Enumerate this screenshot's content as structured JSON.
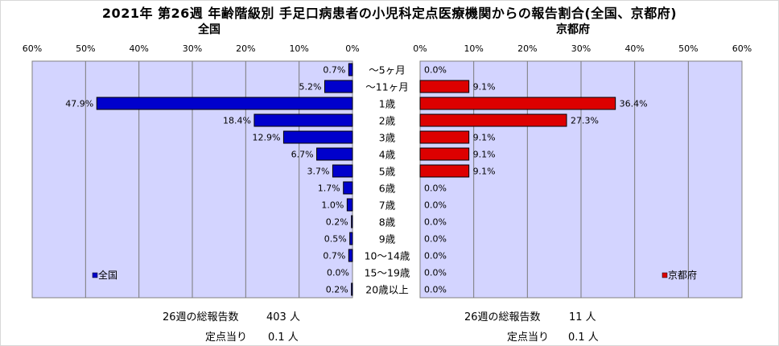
{
  "title": "2021年 第26週 年齢階級別 手足口病患者の小児科定点医療機関からの報告割合(全国、京都府)",
  "chart_data": [
    {
      "type": "bar",
      "panel_title": "全国",
      "legend": "全国",
      "legend_position": "bottom-left",
      "color": "#0000CC",
      "xlim": [
        0,
        60
      ],
      "x_ticks": [
        "0%",
        "10%",
        "20%",
        "30%",
        "40%",
        "50%",
        "60%"
      ],
      "categories": [
        "～5ヶ月",
        "～11ヶ月",
        "1歳",
        "2歳",
        "3歳",
        "4歳",
        "5歳",
        "6歳",
        "7歳",
        "8歳",
        "9歳",
        "10～14歳",
        "15～19歳",
        "20歳以上"
      ],
      "values": [
        0.7,
        5.2,
        47.9,
        18.4,
        12.9,
        6.7,
        3.7,
        1.7,
        1.0,
        0.2,
        0.5,
        0.7,
        0.0,
        0.2
      ],
      "value_labels": [
        "0.7%",
        "5.2%",
        "47.9%",
        "18.4%",
        "12.9%",
        "6.7%",
        "3.7%",
        "1.7%",
        "1.0%",
        "0.2%",
        "0.5%",
        "0.7%",
        "0.0%",
        "0.2%"
      ],
      "grid": true
    },
    {
      "type": "bar",
      "panel_title": "京都府",
      "legend": "京都府",
      "legend_position": "bottom-right",
      "color": "#DD0000",
      "xlim": [
        0,
        60
      ],
      "x_ticks": [
        "0%",
        "10%",
        "20%",
        "30%",
        "40%",
        "50%",
        "60%"
      ],
      "categories": [
        "～5ヶ月",
        "～11ヶ月",
        "1歳",
        "2歳",
        "3歳",
        "4歳",
        "5歳",
        "6歳",
        "7歳",
        "8歳",
        "9歳",
        "10～14歳",
        "15～19歳",
        "20歳以上"
      ],
      "values": [
        0.0,
        9.1,
        36.4,
        27.3,
        9.1,
        9.1,
        9.1,
        0.0,
        0.0,
        0.0,
        0.0,
        0.0,
        0.0,
        0.0
      ],
      "value_labels": [
        "0.0%",
        "9.1%",
        "36.4%",
        "27.3%",
        "9.1%",
        "9.1%",
        "9.1%",
        "0.0%",
        "0.0%",
        "0.0%",
        "0.0%",
        "0.0%",
        "0.0%",
        "0.0%"
      ],
      "grid": true
    }
  ],
  "footer": {
    "national": {
      "total_label": "26週の総報告数",
      "total_value": "403 人",
      "per_label": "定点当り",
      "per_value": "0.1 人"
    },
    "kyoto": {
      "total_label": "26週の総報告数",
      "total_value": "11 人",
      "per_label": "定点当り",
      "per_value": "0.1 人"
    }
  }
}
